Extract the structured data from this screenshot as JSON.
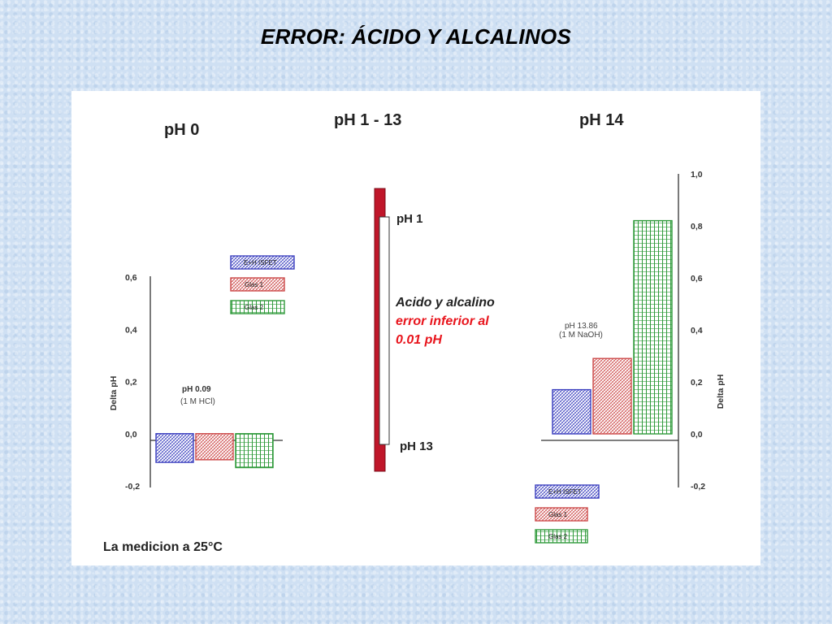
{
  "title": "ERROR: ÁCIDO Y ALCALINOS",
  "footer": "La medicion a 25°C",
  "colors": {
    "blue": "#3b3fbf",
    "red": "#cc4a4a",
    "green": "#2f9a3a",
    "rod": "#c0162a",
    "accent_red": "#e8141c"
  },
  "chart_data": [
    {
      "type": "bar",
      "panel": "left",
      "title": "pH 0",
      "ylabel": "Delta pH",
      "ylim": [
        -0.2,
        0.6
      ],
      "yticks": [
        "0,6",
        "0,4",
        "0,2",
        "0,0",
        "-0,2"
      ],
      "yticks_values": [
        0.6,
        0.4,
        0.2,
        0.0,
        -0.2
      ],
      "annotation": [
        "pH  0.09",
        "(1 M HCl)"
      ],
      "series": [
        {
          "name": "E+H ISFET",
          "values": [
            -0.11
          ]
        },
        {
          "name": "Glas 1",
          "values": [
            -0.1
          ]
        },
        {
          "name": "Glas 2",
          "values": [
            -0.13
          ]
        }
      ],
      "legend": "top-right"
    },
    {
      "type": "range",
      "panel": "middle",
      "title": "pH 1 - 13",
      "top_label": "pH 1",
      "bottom_label": "pH 13",
      "description": [
        "Acido y alcalino",
        "error inferior al",
        "0.01 pH"
      ]
    },
    {
      "type": "bar",
      "panel": "right",
      "title": "pH 14",
      "ylabel": "Delta pH",
      "ylim": [
        -0.2,
        1.0
      ],
      "yticks": [
        "1,0",
        "0,8",
        "0,6",
        "0,4",
        "0,2",
        "0,0",
        "-0,2"
      ],
      "yticks_values": [
        1.0,
        0.8,
        0.6,
        0.4,
        0.2,
        0.0,
        -0.2
      ],
      "annotation": [
        "pH 13.86",
        "(1 M NaOH)"
      ],
      "series": [
        {
          "name": "E+H ISFET",
          "values": [
            0.17
          ]
        },
        {
          "name": "Glas 1",
          "values": [
            0.29
          ]
        },
        {
          "name": "Glas 2",
          "values": [
            0.82
          ]
        }
      ],
      "legend": "bottom-left"
    }
  ]
}
